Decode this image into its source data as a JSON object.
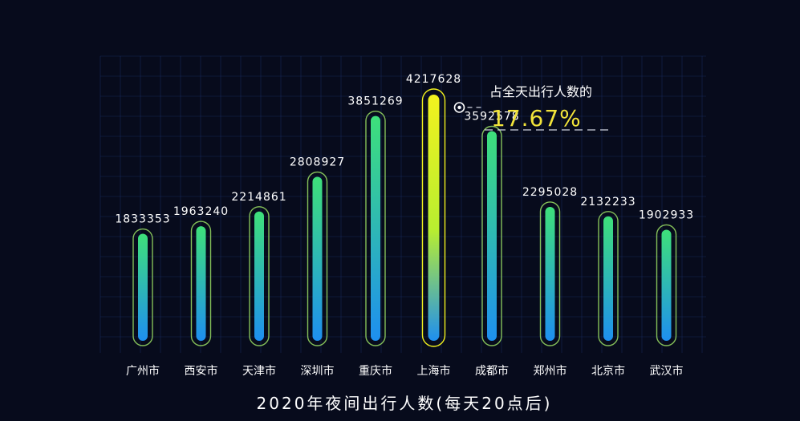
{
  "chart_data": {
    "type": "bar",
    "title": "2020年夜间出行人数(每天20点后)",
    "categories": [
      "广州市",
      "西安市",
      "天津市",
      "深圳市",
      "重庆市",
      "上海市",
      "成都市",
      "郑州市",
      "北京市",
      "武汉市"
    ],
    "values": [
      1833353,
      1963240,
      2214861,
      2808927,
      3851269,
      4217628,
      3592578,
      2295028,
      2132233,
      1902933
    ],
    "ylim": [
      0,
      4217628
    ],
    "grid": true,
    "legend": "none"
  },
  "annotation": {
    "label": "占全天出行人数的",
    "value": "17.67%",
    "target_category": "上海市"
  },
  "colors": {
    "background": "#070b1c",
    "grid": "#1a2f6a",
    "bar_top": "#3ee07a",
    "bar_bottom": "#1e8ff0",
    "highlight_top": "#f2f21e",
    "highlight_bottom": "#1e8ff0",
    "outline": "#9be064",
    "highlight_outline": "#f2f21e",
    "text": "#ffffff",
    "annotation_value": "#f2e43a"
  }
}
